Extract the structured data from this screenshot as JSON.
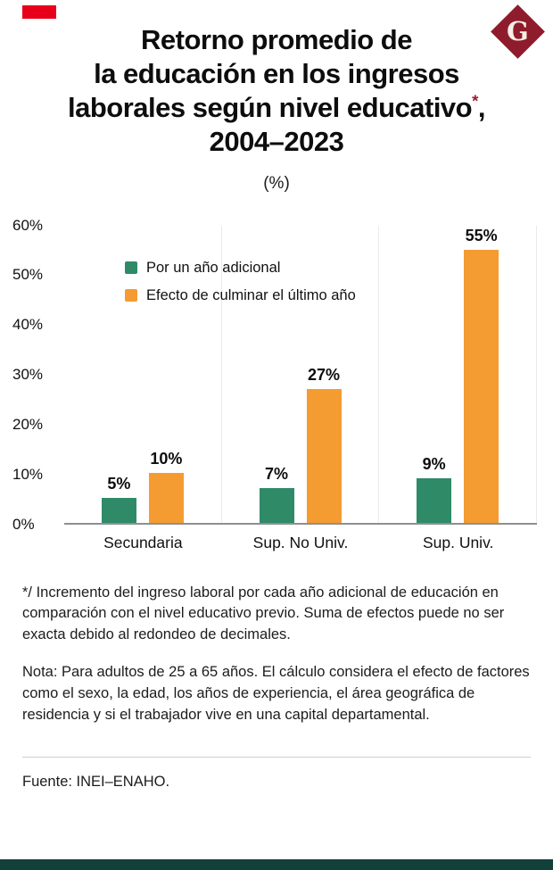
{
  "brand": {
    "logo_letter": "G",
    "accent_red": "#e8001b",
    "logo_color": "#8e1c2c",
    "footer_bar_color": "#14403a",
    "asterisk_color": "#9c1b2e"
  },
  "header": {
    "title_line1": "Retorno promedio de",
    "title_line2": "la educación en los ingresos",
    "title_line3": "laborales según nivel educativo",
    "title_asterisk": "*",
    "title_line3_suffix": ",",
    "title_line4": "2004–2023"
  },
  "chart_data": {
    "type": "bar",
    "title": "Retorno promedio de la educación en los ingresos laborales según nivel educativo, 2004–2023",
    "subtitle": "(%)",
    "unit": "%",
    "categories": [
      "Secundaria",
      "Sup. No Univ.",
      "Sup. Univ."
    ],
    "series": [
      {
        "name": "Por un año adicional",
        "color": "#2f8a68",
        "values": [
          5,
          7,
          9
        ]
      },
      {
        "name": "Efecto de culminar el último año",
        "color": "#f49b32",
        "values": [
          10,
          27,
          55
        ]
      }
    ],
    "ylim": [
      0,
      60
    ],
    "yticks": [
      "60%",
      "50%",
      "40%",
      "30%",
      "20%",
      "10%",
      "0%"
    ],
    "grid": "vertical-light",
    "legend_position": "inside-top-left"
  },
  "footnotes": {
    "definition": "*/ Incremento del ingreso laboral por cada año adicional de educación en comparación con el nivel educativo previo. Suma de efectos puede no ser exacta debido al redondeo de decimales.",
    "note": "Nota: Para adultos de 25 a 65 años. El cálculo considera el efecto de factores como el sexo, la edad, los años de experiencia, el área geográfica de residencia y si el trabajador vive en una capital departamental.",
    "source": "Fuente: INEI–ENAHO."
  }
}
